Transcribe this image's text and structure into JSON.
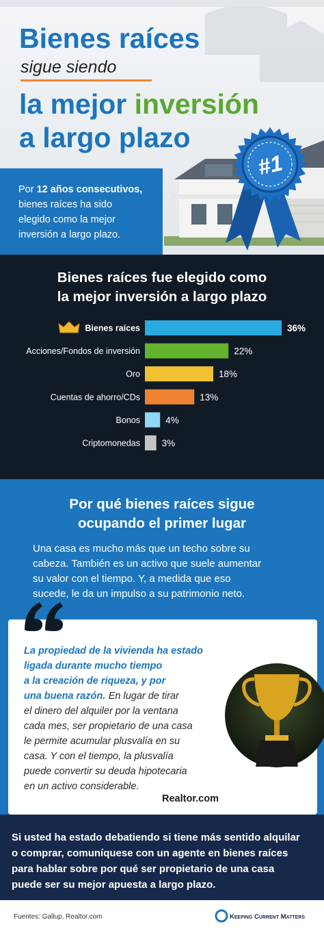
{
  "header": {
    "title_line1": "Bienes raíces",
    "title_line2": "sigue siendo",
    "title_line3_start": "la mejor",
    "title_line3_end": "inversión",
    "title_line4": "a largo plazo",
    "badge": "#1"
  },
  "intro": {
    "lead": "Por",
    "highlight": "12 años consecutivos,",
    "lines": [
      "bienes raíces ha sido",
      "elegido como la mejor",
      "inversión a largo plazo."
    ]
  },
  "chart_data": {
    "type": "bar",
    "orientation": "horizontal",
    "title": [
      "Bienes raíces fue elegido como",
      "la mejor inversión a largo plazo"
    ],
    "categories": [
      "Bienes raíces",
      "Acciones/Fondos de inversión",
      "Oro",
      "Cuentas de ahorro/CDs",
      "Bonos",
      "Criptomonedas"
    ],
    "values": [
      36,
      22,
      18,
      13,
      4,
      3
    ],
    "value_labels": [
      "36%",
      "22%",
      "18%",
      "13%",
      "4%",
      "3%"
    ],
    "colors": [
      "#29abe2",
      "#62b32e",
      "#f0c232",
      "#ee8433",
      "#8fd8f6",
      "#c4c4c4"
    ],
    "xlim": [
      0,
      36
    ]
  },
  "why": {
    "title": [
      "Por qué bienes raíces sigue",
      "ocupando el primer lugar"
    ],
    "paragraph": [
      "Una casa es mucho más que un techo sobre su",
      "cabeza. También es un activo que suele aumentar",
      "su valor con el tiempo. Y, a medida que eso",
      "sucede, le da un impulso a su patrimonio neto."
    ]
  },
  "quote": {
    "emphasis": [
      "La propiedad de la vivienda ha estado",
      "ligada durante mucho tiempo",
      "a la creación de riqueza, y por",
      "una buena razón."
    ],
    "body": [
      "En lugar de tirar",
      "el dinero del alquiler por la ventana",
      "cada mes, ser propietario de una casa",
      "le permite acumular plusvalía en su",
      "casa. Y con el tiempo, la plusvalía",
      "puede convertir su deuda hipotecaria",
      "en un activo considerable."
    ],
    "source": "Realtor.com"
  },
  "closing": [
    "Si usted ha estado debatiendo si tiene más sentido alquilar",
    "o comprar, comuníquese con un agente en bienes raíces",
    "para hablar sobre por qué ser propietario de una casa",
    "puede ser su mejor apuesta a largo plazo."
  ],
  "footer": {
    "sources": "Fuentes: Gallup, Realtor.com",
    "brand": "Keeping Current Matters"
  }
}
